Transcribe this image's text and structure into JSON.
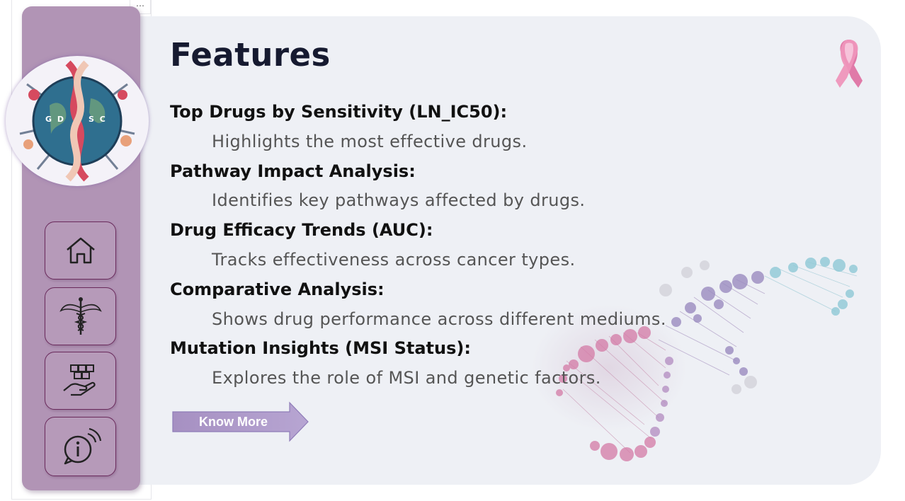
{
  "window": {
    "more_menu_icon": "more-options-icon",
    "more_menu_label": "⋯"
  },
  "sidebar": {
    "logo": {
      "icon": "gdsc-dna-globe-logo",
      "letters_left": "G D",
      "letters_right": "S C"
    },
    "nav": [
      {
        "id": "home",
        "icon": "home-icon"
      },
      {
        "id": "medical",
        "icon": "caduceus-icon"
      },
      {
        "id": "drugs",
        "icon": "hand-boxes-icon"
      },
      {
        "id": "info",
        "icon": "info-bubble-icon"
      }
    ],
    "colors": {
      "panel": "#b194b5",
      "button_border": "#6a2a5c"
    }
  },
  "main": {
    "title": "Features",
    "features": [
      {
        "heading": "Top Drugs by Sensitivity (LN_IC50):",
        "description": "Highlights the most effective drugs."
      },
      {
        "heading": "Pathway Impact Analysis:",
        "description": "Identifies key pathways affected by drugs."
      },
      {
        "heading": "Drug Efficacy Trends (AUC):",
        "description": "Tracks effectiveness across cancer types."
      },
      {
        "heading": "Comparative Analysis:",
        "description": "Shows drug performance across different mediums."
      },
      {
        "heading": "Mutation Insights (MSI Status):",
        "description": "Explores the role of MSI and genetic factors."
      }
    ],
    "cta": {
      "label": "Know More",
      "icon": "arrow-right-button"
    },
    "decorations": {
      "ribbon_icon": "pink-ribbon-icon",
      "dna_art": "dna-helix-illustration"
    },
    "colors": {
      "card_bg": "#eef0f5",
      "title": "#161a30",
      "accent_pink": "#e07aa8"
    }
  }
}
